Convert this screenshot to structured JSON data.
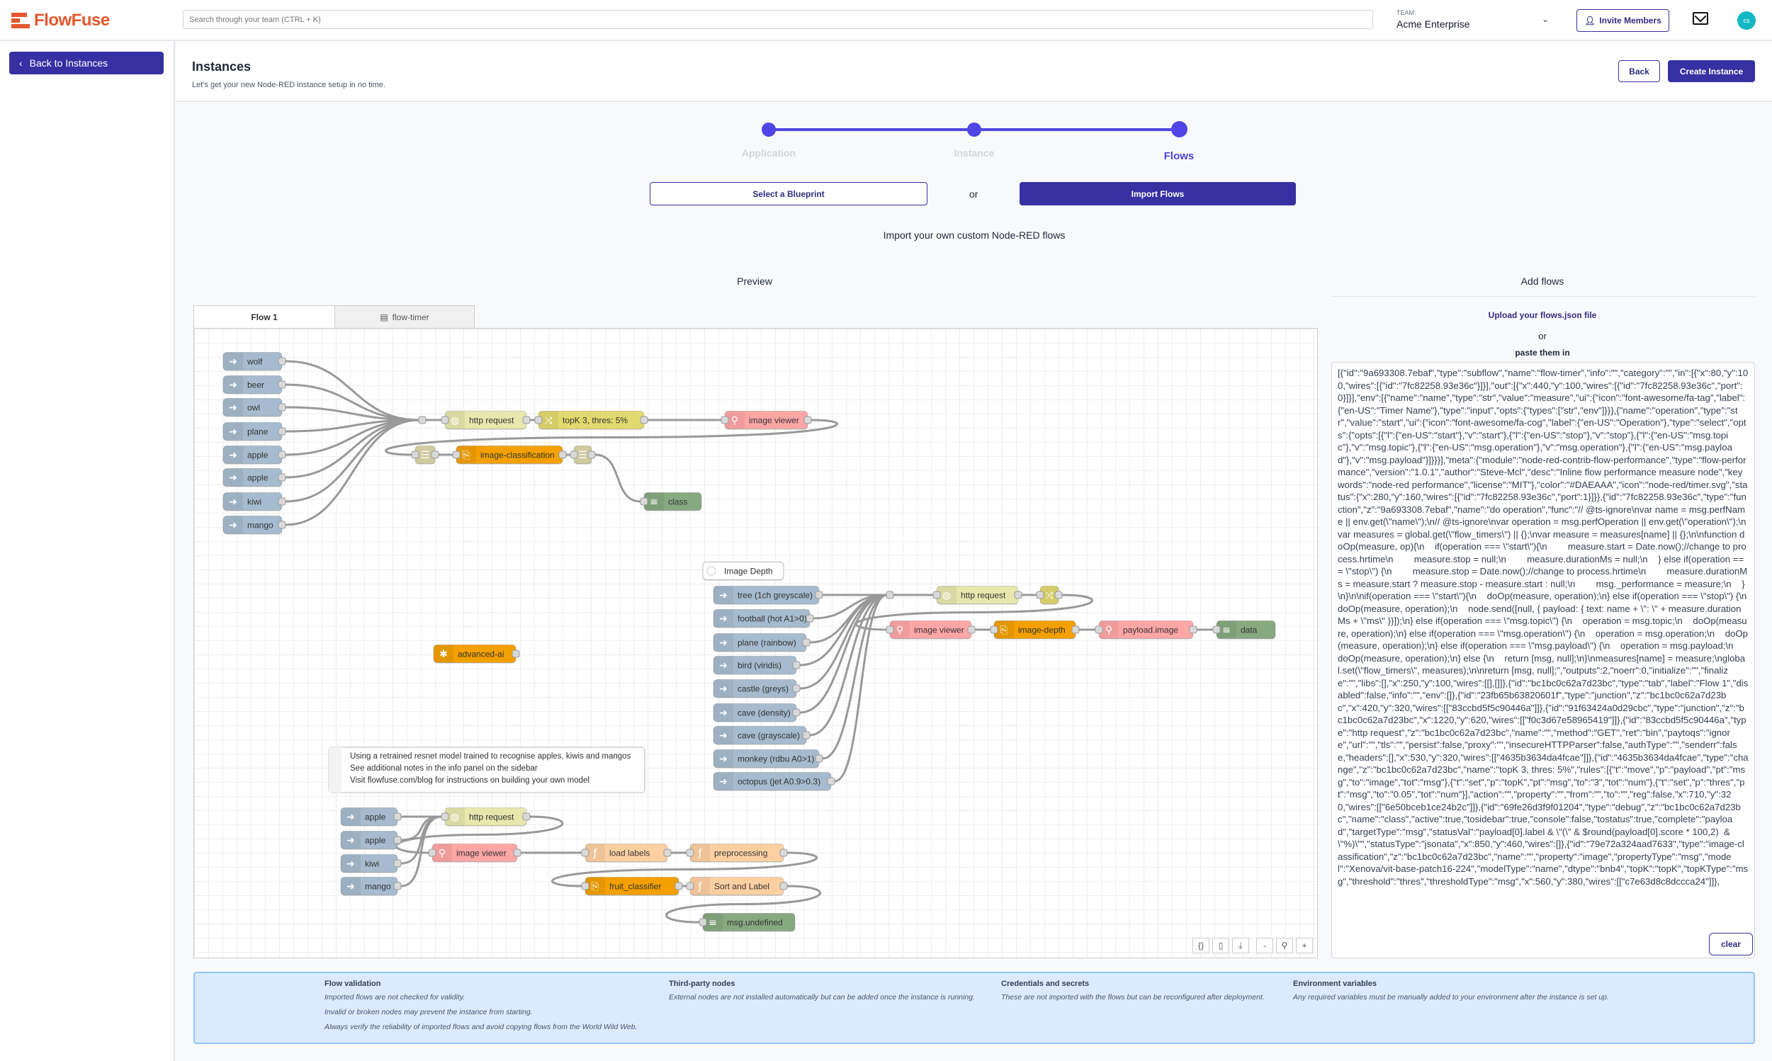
{
  "header": {
    "logo_text": "FlowFuse",
    "search_placeholder": "Search through your team (CTRL + K)",
    "team_label": "TEAM:",
    "team_name": "Acme Enterprise",
    "invite_label": "Invite Members",
    "avatar_initials": "cs"
  },
  "sidebar": {
    "back_label": "Back to Instances"
  },
  "page": {
    "title": "Instances",
    "subtitle": "Let's get your new Node-RED instance setup in no time.",
    "back_label": "Back",
    "create_label": "Create Instance"
  },
  "stepper": {
    "steps": [
      "Application",
      "Instance",
      "Flows"
    ],
    "active_step": 3,
    "accent_color": "#4f46e5"
  },
  "choice": {
    "blueprint_label": "Select a Blueprint",
    "or_label": "or",
    "import_label": "Import Flows",
    "description": "Import your own custom Node-RED flows"
  },
  "preview": {
    "title": "Preview",
    "tabs": [
      {
        "label": "Flow 1",
        "active": true
      },
      {
        "label": "flow-timer",
        "icon": "subflow-icon",
        "active": false
      }
    ],
    "nodes": [
      {
        "label": "wolf",
        "type": "inject"
      },
      {
        "label": "beer",
        "type": "inject"
      },
      {
        "label": "owl",
        "type": "inject"
      },
      {
        "label": "plane",
        "type": "inject"
      },
      {
        "label": "apple",
        "type": "inject"
      },
      {
        "label": "apple",
        "type": "inject"
      },
      {
        "label": "kiwi",
        "type": "inject"
      },
      {
        "label": "mango",
        "type": "inject"
      },
      {
        "type": "junction"
      },
      {
        "label": "http request",
        "type": "http-request"
      },
      {
        "label": "topK 3, thres: 5%",
        "type": "change"
      },
      {
        "label": "image viewer",
        "type": "image-viewer"
      },
      {
        "type": "link"
      },
      {
        "label": "image-classification",
        "type": "ai"
      },
      {
        "type": "link"
      },
      {
        "label": "class",
        "type": "debug"
      },
      {
        "label": "Image Depth",
        "type": "comment"
      },
      {
        "label": "tree (1ch greyscale)",
        "type": "inject"
      },
      {
        "label": "football (hot A1>0)",
        "type": "inject"
      },
      {
        "label": "plane (rainbow)",
        "type": "inject"
      },
      {
        "label": "bird (viridis)",
        "type": "inject"
      },
      {
        "label": "castle (greys)",
        "type": "inject"
      },
      {
        "label": "cave (density)",
        "type": "inject"
      },
      {
        "label": "cave (grayscale)",
        "type": "inject"
      },
      {
        "label": "monkey (rdbu A0>1)",
        "type": "inject"
      },
      {
        "label": "octopus (jet A0.9>0.3)",
        "type": "inject"
      },
      {
        "type": "junction"
      },
      {
        "label": "http request",
        "type": "http-request"
      },
      {
        "type": "change"
      },
      {
        "label": "image viewer",
        "type": "image-viewer"
      },
      {
        "label": "image-depth",
        "type": "ai"
      },
      {
        "label": "payload.image",
        "type": "image-viewer"
      },
      {
        "label": "data",
        "type": "debug"
      },
      {
        "label": "advanced-ai",
        "type": "ai-source"
      },
      {
        "type": "comment",
        "lines": [
          "Using a retrained resnet model trained to recognise apples, kiwis and mangos",
          "See additional notes in the info panel on the sidebar",
          "Visit flowfuse.com/blog for instructions on building your own model"
        ]
      },
      {
        "label": "apple",
        "type": "inject"
      },
      {
        "label": "apple",
        "type": "inject"
      },
      {
        "label": "kiwi",
        "type": "inject"
      },
      {
        "label": "mango",
        "type": "inject"
      },
      {
        "label": "http request",
        "type": "http-request"
      },
      {
        "label": "image viewer",
        "type": "image-viewer"
      },
      {
        "label": "load labels",
        "type": "function"
      },
      {
        "label": "preprocessing",
        "type": "function"
      },
      {
        "label": "fruit_classifier",
        "type": "ai"
      },
      {
        "label": "Sort and Label",
        "type": "function"
      },
      {
        "label": "msg.undefined",
        "type": "debug"
      }
    ],
    "node_colors": {
      "inject": "#a6bbcf",
      "http-request": "#e7e7ae",
      "change": "#e2d96e",
      "image-viewer": "#ffa6a6",
      "ai": "#f3a000",
      "ai-source": "#f3a000",
      "link": "#ddd8a9",
      "debug": "#87a980",
      "function": "#fdd0a2",
      "comment": "#ffffff",
      "junction": "#d9d9d9"
    },
    "toolbar": [
      "code-icon",
      "clipboard-icon",
      "download-icon",
      "zoom-out-icon",
      "zoom-reset-icon",
      "zoom-in-icon"
    ],
    "toolbar_glyphs": [
      "{}",
      "▯",
      "⤓",
      "-",
      "⚲",
      "+"
    ]
  },
  "add_flows": {
    "title": "Add flows",
    "upload_label": "Upload your flows.json file",
    "or_label": "or",
    "paste_label": "paste them in",
    "clear_label": "clear",
    "textarea_value": "[{\"id\":\"9a693308.7ebaf\",\"type\":\"subflow\",\"name\":\"flow-timer\",\"info\":\"\",\"category\":\"\",\"in\":[{\"x\":80,\"y\":100,\"wires\":[{\"id\":\"7fc82258.93e36c\"}]}],\"out\":[{\"x\":440,\"y\":100,\"wires\":[{\"id\":\"7fc82258.93e36c\",\"port\":0}]}],\"env\":[{\"name\":\"name\",\"type\":\"str\",\"value\":\"measure\",\"ui\":{\"icon\":\"font-awesome/fa-tag\",\"label\":{\"en-US\":\"Timer Name\"},\"type\":\"input\",\"opts\":{\"types\":[\"str\",\"env\"]}}},{\"name\":\"operation\",\"type\":\"str\",\"value\":\"start\",\"ui\":{\"icon\":\"font-awesome/fa-cog\",\"label\":{\"en-US\":\"Operation\"},\"type\":\"select\",\"opts\":{\"opts\":[{\"l\":{\"en-US\":\"start\"},\"v\":\"start\"},{\"l\":{\"en-US\":\"stop\"},\"v\":\"stop\"},{\"l\":{\"en-US\":\"msg.topic\"},\"v\":\"msg.topic\"},{\"l\":{\"en-US\":\"msg.operation\"},\"v\":\"msg.operation\"},{\"l\":{\"en-US\":\"msg.payload\"},\"v\":\"msg.payload\"}]}}}],\"meta\":{\"module\":\"node-red-contrib-flow-performance\",\"type\":\"flow-performance\",\"version\":\"1.0.1\",\"author\":\"Steve-Mcl\",\"desc\":\"Inline flow performance measure node\",\"keywords\":\"node-red performance\",\"license\":\"MIT\"},\"color\":\"#DAEAAA\",\"icon\":\"node-red/timer.svg\",\"status\":{\"x\":280,\"y\":160,\"wires\":[{\"id\":\"7fc82258.93e36c\",\"port\":1}]}},{\"id\":\"7fc82258.93e36c\",\"type\":\"function\",\"z\":\"9a693308.7ebaf\",\"name\":\"do operation\",\"func\":\"// @ts-ignore\\nvar name = msg.perfName || env.get(\\\"name\\\");\\n// @ts-ignore\\nvar operation = msg.perfOperation || env.get(\\\"operation\\\");\\nvar measures = global.get(\\\"flow_timers\\\") || {};\\nvar measure = measures[name] || {};\\n\\nfunction doOp(measure, op){\\n    if(operation === \\\"start\\\"){\\n        measure.start = Date.now();//change to process.hrtime\\n        measure.stop = null;\\n        measure.durationMs = null;\\n    } else if(operation === \\\"stop\\\") {\\n        measure.stop = Date.now();//change to process.hrtime\\n        measure.durationMs = measure.start ? measure.stop - measure.start : null;\\n        msg._performance = measure;\\n    }\\n}\\n\\nif(operation === \\\"start\\\"){\\n    doOp(measure, operation);\\n} else if(operation === \\\"stop\\\") {\\n    doOp(measure, operation);\\n    node.send([null, { payload: { text: name + \\\": \\\" + measure.durationMs + \\\"ms\\\" }}]);\\n} else if(operation === \\\"msg.topic\\\") {\\n    operation = msg.topic;\\n    doOp(measure, operation);\\n} else if(operation === \\\"msg.operation\\\") {\\n    operation = msg.operation;\\n    doOp(measure, operation);\\n} else if(operation === \\\"msg.payload\\\") {\\n    operation = msg.payload;\\n    doOp(measure, operation);\\n} else {\\n    return [msg, null];\\n}\\nmeasures[name] = measure;\\nglobal.set(\\\"flow_timers\\\", measures);\\n\\nreturn [msg, null];\",\"outputs\":2,\"noerr\":0,\"initialize\":\"\",\"finalize\":\"\",\"libs\":[],\"x\":250,\"y\":100,\"wires\":[[],[]]},{\"id\":\"bc1bc0c62a7d23bc\",\"type\":\"tab\",\"label\":\"Flow 1\",\"disabled\":false,\"info\":\"\",\"env\":[]},{\"id\":\"23fb65b63820601f\",\"type\":\"junction\",\"z\":\"bc1bc0c62a7d23bc\",\"x\":420,\"y\":320,\"wires\":[[\"83ccbd5f5c90446a\"]]},{\"id\":\"91f63424a0d29cbc\",\"type\":\"junction\",\"z\":\"bc1bc0c62a7d23bc\",\"x\":1220,\"y\":620,\"wires\":[[\"f0c3d67e58965419\"]]},{\"id\":\"83ccbd5f5c90446a\",\"type\":\"http request\",\"z\":\"bc1bc0c62a7d23bc\",\"name\":\"\",\"method\":\"GET\",\"ret\":\"bin\",\"paytoqs\":\"ignore\",\"url\":\"\",\"tls\":\"\",\"persist\":false,\"proxy\":\"\",\"insecureHTTPParser\":false,\"authType\":\"\",\"senderr\":false,\"headers\":[],\"x\":530,\"y\":320,\"wires\":[[\"4635b3634da4fcae\"]]},{\"id\":\"4635b3634da4fcae\",\"type\":\"change\",\"z\":\"bc1bc0c62a7d23bc\",\"name\":\"topK 3, thres: 5%\",\"rules\":[{\"t\":\"move\",\"p\":\"payload\",\"pt\":\"msg\",\"to\":\"image\",\"tot\":\"msg\"},{\"t\":\"set\",\"p\":\"topK\",\"pt\":\"msg\",\"to\":\"3\",\"tot\":\"num\"},{\"t\":\"set\",\"p\":\"thres\",\"pt\":\"msg\",\"to\":\"0.05\",\"tot\":\"num\"}],\"action\":\"\",\"property\":\"\",\"from\":\"\",\"to\":\"\",\"reg\":false,\"x\":710,\"y\":320,\"wires\":[[\"6e50bceb1ce24b2c\"]]},{\"id\":\"69fe26d3f9f01204\",\"type\":\"debug\",\"z\":\"bc1bc0c62a7d23bc\",\"name\":\"class\",\"active\":true,\"tosidebar\":true,\"console\":false,\"tostatus\":true,\"complete\":\"payload\",\"targetType\":\"msg\",\"statusVal\":\"payload[0].label & \\\"(\\\" & $round(payload[0].score * 100,2)  & \\\"%)\\\"\",\"statusType\":\"jsonata\",\"x\":850,\"y\":460,\"wires\":[]},{\"id\":\"79e72a324aad7633\",\"type\":\"image-classification\",\"z\":\"bc1bc0c62a7d23bc\",\"name\":\"\",\"property\":\"image\",\"propertyType\":\"msg\",\"model\":\"Xenova/vit-base-patch16-224\",\"modelType\":\"name\",\"dtype\":\"bnb4\",\"topK\":\"topK\",\"topKType\":\"msg\",\"threshold\":\"thres\",\"thresholdType\":\"msg\",\"x\":560,\"y\":380,\"wires\":[[\"c7e63d8c8dccca24\"]]},"
  },
  "info": [
    {
      "title": "Flow validation",
      "lines": [
        "Imported flows are not checked for validity.",
        "Invalid or broken nodes may prevent the instance from starting.",
        "Always verify the reliability of imported flows and avoid copying flows from the World Wild Web."
      ]
    },
    {
      "title": "Third-party nodes",
      "lines": [
        "External nodes are not installed automatically but can be added once the instance is running."
      ]
    },
    {
      "title": "Credentials and secrets",
      "lines": [
        "These are not imported with the flows but can be reconfigured after deployment."
      ]
    },
    {
      "title": "Environment variables",
      "lines": [
        "Any required variables must be manually added to your environment after the instance is set up."
      ]
    }
  ]
}
